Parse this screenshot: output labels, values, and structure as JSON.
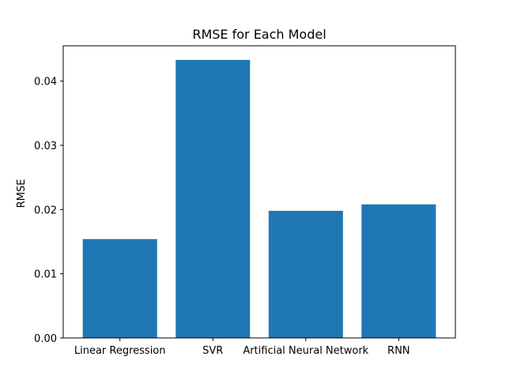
{
  "chart_data": {
    "type": "bar",
    "title": "RMSE for Each Model",
    "xlabel": "",
    "ylabel": "RMSE",
    "categories": [
      "Linear Regression",
      "SVR",
      "Artificial Neural Network",
      "RNN"
    ],
    "values": [
      0.0154,
      0.0433,
      0.0198,
      0.0208
    ],
    "ylim": [
      0,
      0.0455
    ],
    "yticks": [
      0.0,
      0.01,
      0.02,
      0.03,
      0.04
    ],
    "ytick_labels": [
      "0.00",
      "0.01",
      "0.02",
      "0.03",
      "0.04"
    ],
    "grid": false,
    "bar_color": "#1f77b4"
  }
}
